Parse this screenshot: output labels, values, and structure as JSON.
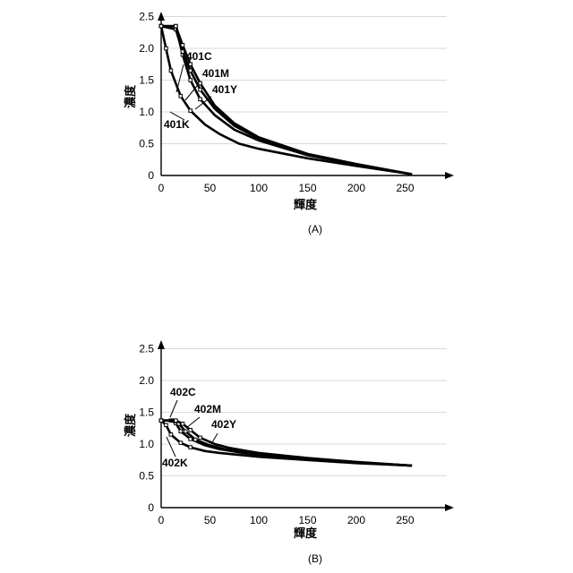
{
  "chart_data": [
    {
      "type": "line",
      "panel_label": "(A)",
      "xlabel": "輝度",
      "ylabel": "濃度",
      "xlim": [
        0,
        300
      ],
      "ylim": [
        0,
        2.5
      ],
      "x_ticks": [
        "0",
        "50",
        "100",
        "150",
        "200",
        "250"
      ],
      "y_ticks": [
        "0",
        "0.5",
        "1.0",
        "1.5",
        "2.0",
        "2.5"
      ],
      "grid": true,
      "series": [
        {
          "name": "401C",
          "x": [
            0,
            15,
            22,
            30,
            40,
            55,
            75,
            100,
            150,
            200,
            257
          ],
          "y": [
            2.35,
            2.35,
            1.9,
            1.5,
            1.2,
            0.95,
            0.72,
            0.55,
            0.32,
            0.17,
            0.02
          ]
        },
        {
          "name": "401M",
          "x": [
            0,
            15,
            22,
            30,
            40,
            55,
            75,
            100,
            150,
            200,
            257
          ],
          "y": [
            2.35,
            2.3,
            1.95,
            1.65,
            1.35,
            1.05,
            0.78,
            0.58,
            0.33,
            0.17,
            0.02
          ]
        },
        {
          "name": "401Y",
          "x": [
            0,
            15,
            22,
            30,
            40,
            55,
            75,
            100,
            150,
            200,
            257
          ],
          "y": [
            2.35,
            2.35,
            2.05,
            1.75,
            1.45,
            1.1,
            0.82,
            0.6,
            0.34,
            0.18,
            0.02
          ]
        },
        {
          "name": "401K",
          "x": [
            0,
            5,
            10,
            20,
            30,
            45,
            60,
            80,
            100,
            150,
            200,
            257
          ],
          "y": [
            2.35,
            2.0,
            1.65,
            1.25,
            1.02,
            0.8,
            0.65,
            0.5,
            0.42,
            0.27,
            0.15,
            0.02
          ]
        }
      ]
    },
    {
      "type": "line",
      "panel_label": "(B)",
      "xlabel": "輝度",
      "ylabel": "濃度",
      "xlim": [
        0,
        300
      ],
      "ylim": [
        0,
        2.5
      ],
      "x_ticks": [
        "0",
        "50",
        "100",
        "150",
        "200",
        "250"
      ],
      "y_ticks": [
        "0",
        "0.5",
        "1.0",
        "1.5",
        "2.0",
        "2.5"
      ],
      "grid": true,
      "series": [
        {
          "name": "402C",
          "x": [
            0,
            10,
            15,
            20,
            30,
            45,
            60,
            80,
            100,
            150,
            200,
            257
          ],
          "y": [
            1.37,
            1.37,
            1.33,
            1.2,
            1.08,
            0.98,
            0.92,
            0.87,
            0.83,
            0.76,
            0.71,
            0.66
          ]
        },
        {
          "name": "402M",
          "x": [
            0,
            12,
            18,
            25,
            35,
            50,
            65,
            80,
            100,
            150,
            200,
            257
          ],
          "y": [
            1.37,
            1.37,
            1.32,
            1.2,
            1.07,
            0.98,
            0.92,
            0.88,
            0.84,
            0.77,
            0.71,
            0.66
          ]
        },
        {
          "name": "402Y",
          "x": [
            0,
            15,
            22,
            30,
            40,
            55,
            70,
            85,
            100,
            150,
            200,
            257
          ],
          "y": [
            1.37,
            1.37,
            1.32,
            1.22,
            1.1,
            1.0,
            0.94,
            0.9,
            0.86,
            0.78,
            0.72,
            0.66
          ]
        },
        {
          "name": "402K",
          "x": [
            0,
            5,
            10,
            20,
            30,
            45,
            60,
            80,
            100,
            150,
            200,
            257
          ],
          "y": [
            1.37,
            1.3,
            1.15,
            1.02,
            0.95,
            0.89,
            0.86,
            0.83,
            0.8,
            0.75,
            0.7,
            0.66
          ]
        }
      ]
    }
  ]
}
